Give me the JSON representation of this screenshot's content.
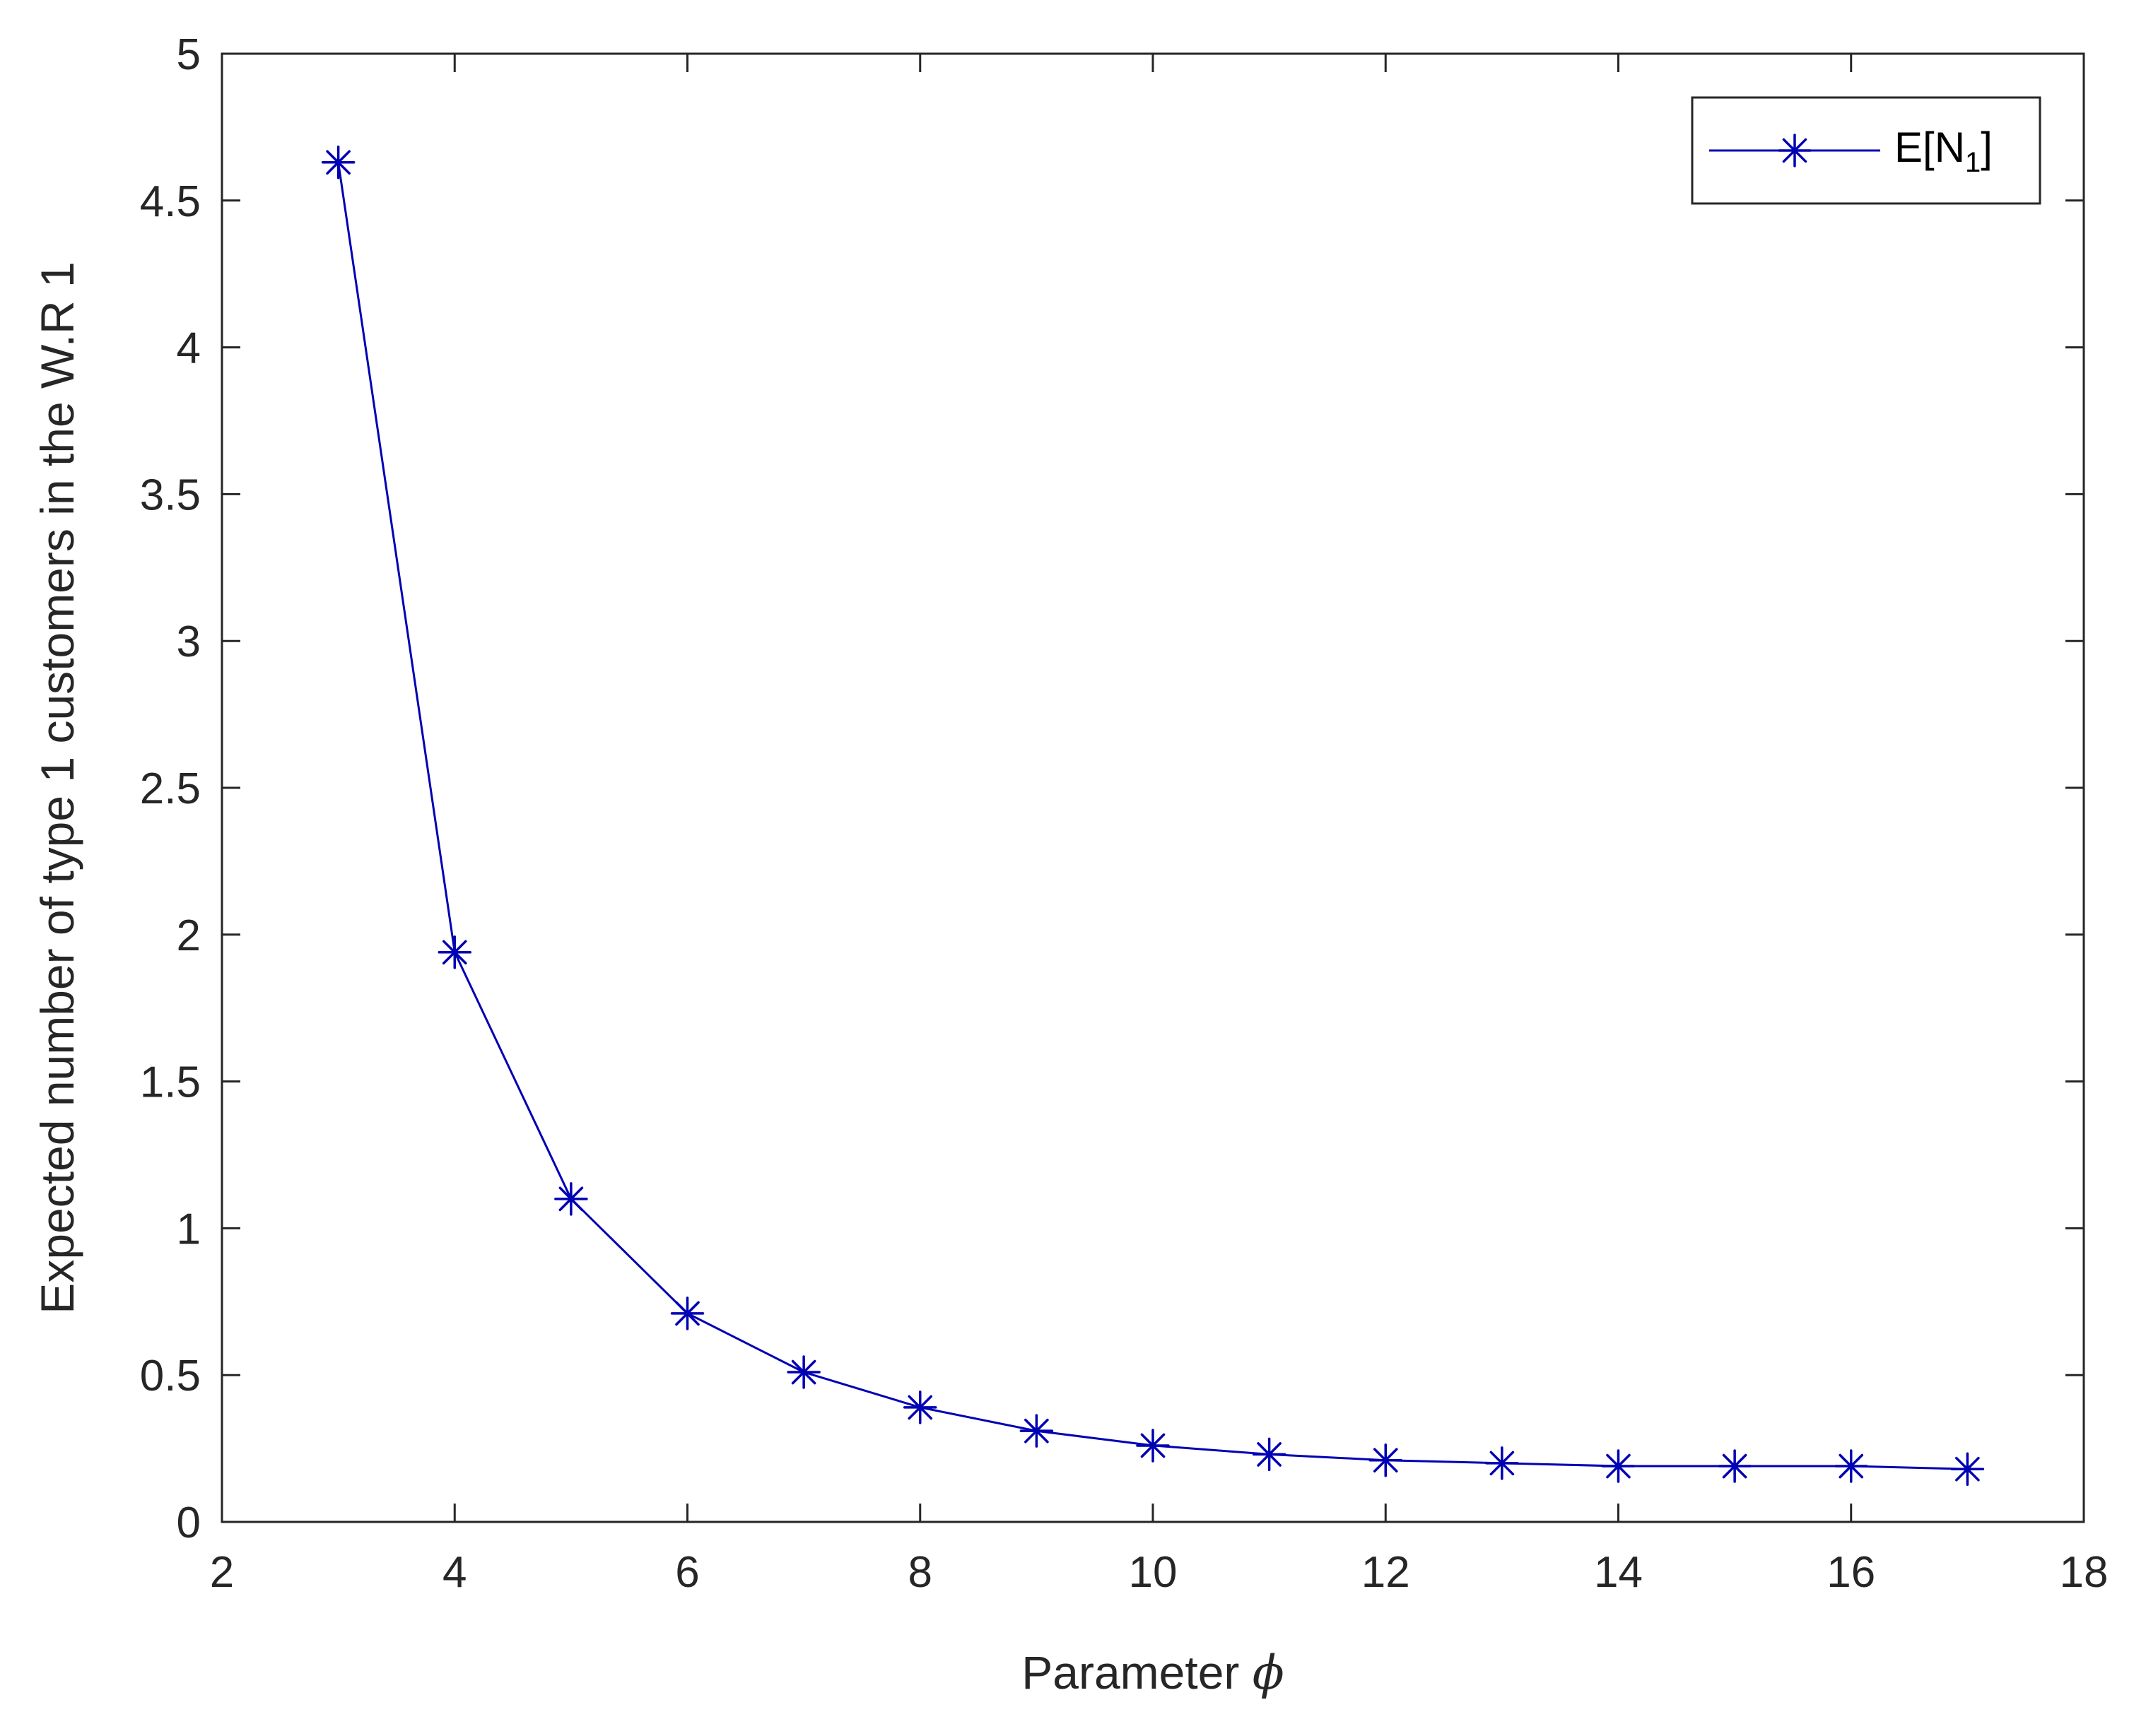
{
  "chart_data": {
    "type": "line",
    "xlabel_text": "Parameter ",
    "xlabel_symbol": "ϕ",
    "ylabel": "Expected number of  type 1 customers in the W.R 1",
    "xlim": [
      2,
      18
    ],
    "ylim": [
      0,
      5
    ],
    "xticks": [
      2,
      4,
      6,
      8,
      10,
      12,
      14,
      16,
      18
    ],
    "yticks": [
      0,
      0.5,
      1,
      1.5,
      2,
      2.5,
      3,
      3.5,
      4,
      4.5,
      5
    ],
    "grid": false,
    "legend_position": "top-right",
    "legend": {
      "prefix": "E[N",
      "subscript": "1",
      "suffix": "]"
    },
    "series": [
      {
        "name": "E[N1]",
        "color": "#0000b4",
        "marker": "asterisk",
        "x": [
          3,
          4,
          5,
          6,
          7,
          8,
          9,
          10,
          11,
          12,
          13,
          14,
          15,
          16,
          17
        ],
        "y": [
          4.63,
          1.94,
          1.1,
          0.71,
          0.51,
          0.39,
          0.31,
          0.26,
          0.23,
          0.21,
          0.2,
          0.19,
          0.19,
          0.19,
          0.18
        ]
      }
    ]
  }
}
